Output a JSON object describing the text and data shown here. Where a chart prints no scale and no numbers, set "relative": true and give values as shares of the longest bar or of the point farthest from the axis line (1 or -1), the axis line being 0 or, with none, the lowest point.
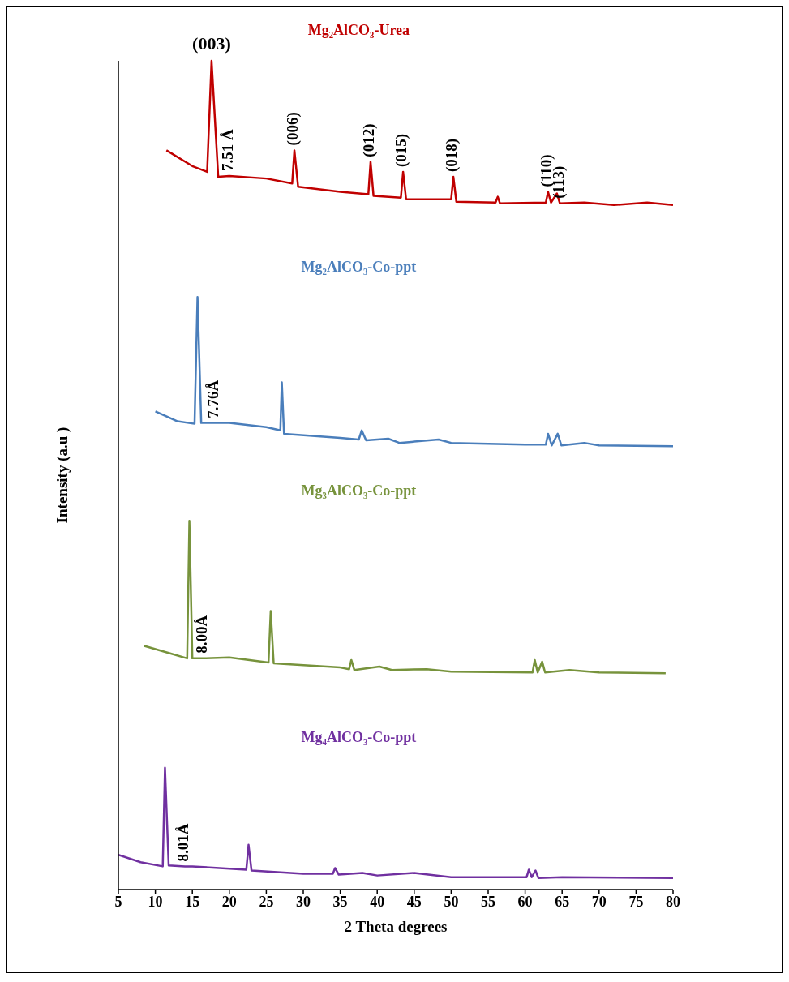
{
  "chart_data": {
    "type": "line",
    "relative": true,
    "xlabel": "2 Theta degrees",
    "ylabel": "Intensity (a.u )",
    "xlim": [
      5,
      80
    ],
    "xticks": [
      5,
      10,
      15,
      20,
      25,
      30,
      35,
      40,
      45,
      50,
      55,
      60,
      65,
      70,
      75,
      80
    ],
    "grid": false,
    "legend": false,
    "marker": "none",
    "line_style": "solid",
    "tick_labels": "x",
    "series": [
      {
        "name": "Mg₂AlCO₃-Urea",
        "color": "#c00000",
        "x": [
          11.5,
          15,
          17,
          17.6,
          18.5,
          20,
          25,
          28.5,
          28.8,
          29.3,
          35,
          38.8,
          39.1,
          39.5,
          43.2,
          43.5,
          43.9,
          50,
          50.3,
          50.7,
          56,
          56.3,
          56.6,
          62.8,
          63.1,
          63.5,
          64.3,
          64.7,
          68,
          72,
          76.5,
          80
        ],
        "values": [
          0.892,
          0.873,
          0.866,
          1.0,
          0.86,
          0.861,
          0.858,
          0.852,
          0.892,
          0.848,
          0.842,
          0.839,
          0.878,
          0.837,
          0.835,
          0.866,
          0.833,
          0.833,
          0.86,
          0.83,
          0.829,
          0.836,
          0.828,
          0.829,
          0.842,
          0.829,
          0.84,
          0.828,
          0.829,
          0.826,
          0.829,
          0.826
        ]
      },
      {
        "name": "Mg₂AlCO₃-Co-ppt",
        "color": "#4a7ebb",
        "x": [
          10,
          13,
          15.3,
          15.7,
          16.2,
          18,
          20,
          25,
          26.9,
          27.1,
          27.4,
          35,
          37.5,
          37.9,
          38.5,
          41.5,
          43,
          48.3,
          50,
          60,
          62.8,
          63.1,
          63.6,
          64.4,
          64.9,
          68,
          70,
          80
        ],
        "values": [
          0.577,
          0.565,
          0.562,
          0.715,
          0.563,
          0.563,
          0.563,
          0.558,
          0.554,
          0.612,
          0.55,
          0.545,
          0.543,
          0.554,
          0.542,
          0.544,
          0.539,
          0.543,
          0.539,
          0.537,
          0.537,
          0.55,
          0.536,
          0.55,
          0.536,
          0.539,
          0.536,
          0.535
        ]
      },
      {
        "name": "Mg₃AlCO₃-Co-ppt",
        "color": "#77933c",
        "x": [
          8.5,
          12,
          14.3,
          14.6,
          15,
          16.5,
          20,
          25.3,
          25.6,
          26,
          35,
          36.2,
          36.5,
          36.9,
          40.3,
          42,
          46.7,
          50,
          61,
          61.3,
          61.7,
          62.3,
          62.7,
          66,
          70,
          79
        ],
        "values": [
          0.294,
          0.285,
          0.279,
          0.445,
          0.279,
          0.279,
          0.28,
          0.274,
          0.336,
          0.273,
          0.268,
          0.266,
          0.277,
          0.265,
          0.269,
          0.265,
          0.266,
          0.263,
          0.262,
          0.277,
          0.262,
          0.275,
          0.262,
          0.265,
          0.262,
          0.261
        ]
      },
      {
        "name": "Mg₄AlCO₃-Co-ppt",
        "color": "#7030a0",
        "x": [
          5,
          8,
          11,
          11.3,
          11.8,
          14,
          15,
          22.3,
          22.6,
          23,
          30,
          34,
          34.3,
          34.8,
          38,
          40,
          45,
          50,
          60.2,
          60.5,
          60.9,
          61.4,
          61.8,
          65,
          80
        ],
        "values": [
          0.042,
          0.033,
          0.028,
          0.147,
          0.029,
          0.028,
          0.028,
          0.024,
          0.054,
          0.023,
          0.019,
          0.019,
          0.026,
          0.018,
          0.02,
          0.017,
          0.02,
          0.015,
          0.015,
          0.024,
          0.015,
          0.023,
          0.014,
          0.015,
          0.014
        ]
      }
    ],
    "annotations": [
      {
        "text": "(003)",
        "x": 17.6,
        "y": 1.0
      },
      {
        "text": "7.51 Å",
        "x": 20,
        "y": 0.861
      },
      {
        "text": "(006)",
        "x": 28.8,
        "y": 0.892
      },
      {
        "text": "(012)",
        "x": 39.1,
        "y": 0.878
      },
      {
        "text": "(015)",
        "x": 43.5,
        "y": 0.866
      },
      {
        "text": "(018)",
        "x": 50.3,
        "y": 0.86
      },
      {
        "text": "(110)",
        "x": 63.1,
        "y": 0.842
      },
      {
        "text": "(113)",
        "x": 64.7,
        "y": 0.828
      },
      {
        "text": "7.76Å",
        "x": 18,
        "y": 0.563
      },
      {
        "text": "8.00Å",
        "x": 16.5,
        "y": 0.279
      },
      {
        "text": "8.01Å",
        "x": 14,
        "y": 0.028
      }
    ]
  }
}
